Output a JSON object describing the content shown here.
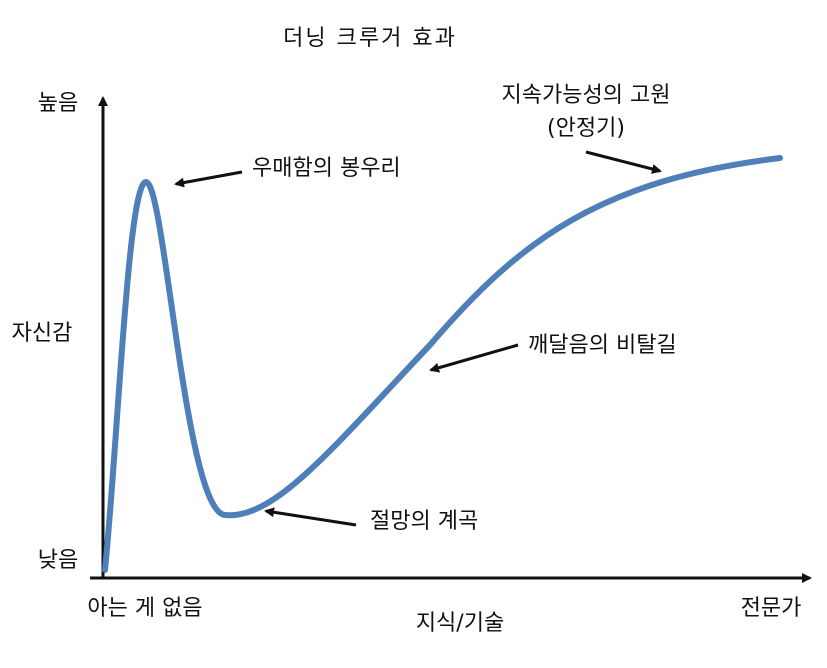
{
  "title": "더닝 크루거 효과",
  "y_axis": {
    "high": "높음",
    "label": "자신감",
    "low": "낮음"
  },
  "x_axis": {
    "start": "아는 게 없음",
    "label": "지식/기술",
    "end": "전문가"
  },
  "annotations": {
    "peak": "우매함의 봉우리",
    "valley": "절망의 계곡",
    "slope": "깨달음의 비탈길",
    "plateau_line1": "지속가능성의 고원",
    "plateau_line2": "(안정기)"
  },
  "colors": {
    "curve": "#4f7fb8",
    "axis": "#111111",
    "text": "#111111"
  }
}
